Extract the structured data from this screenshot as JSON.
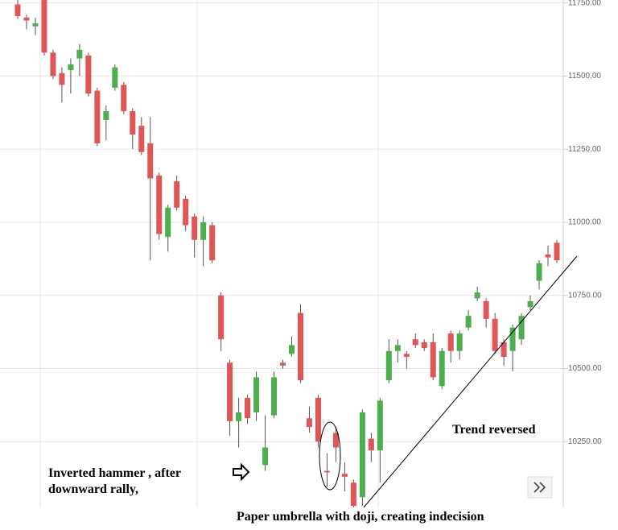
{
  "chart_data": {
    "type": "candlestick",
    "categories": [
      null,
      null,
      null,
      null,
      null,
      null,
      null,
      null,
      null,
      null,
      null,
      null,
      null,
      null,
      null,
      null,
      null,
      null,
      null,
      null,
      null,
      null,
      null,
      null,
      null,
      null,
      null,
      null,
      null,
      null,
      null,
      null,
      null,
      null,
      null,
      null,
      null,
      null,
      null,
      null,
      null,
      null,
      null,
      null,
      null,
      null,
      null,
      null,
      null,
      null,
      null,
      null,
      null,
      null,
      null,
      null,
      null,
      null,
      null,
      null,
      null,
      null
    ],
    "open": [
      11745,
      11700,
      11670,
      11760,
      11580,
      11510,
      11520,
      11560,
      11570,
      11450,
      11350,
      11460,
      11470,
      11380,
      11330,
      11270,
      11160,
      10950,
      11140,
      11080,
      11020,
      10940,
      10990,
      10750,
      10520,
      10320,
      10400,
      10350,
      10170,
      10340,
      10520,
      10550,
      10690,
      10330,
      10400,
      10150,
      10280,
      10140,
      10110,
      10060,
      10260,
      10220,
      10460,
      10560,
      10550,
      10600,
      10590,
      10590,
      10440,
      10620,
      10560,
      10640,
      10740,
      10730,
      10670,
      10590,
      10560,
      10600,
      10710,
      10800,
      10890,
      10930
    ],
    "high": [
      11760,
      11710,
      11700,
      11760,
      11590,
      11530,
      11560,
      11610,
      11580,
      11460,
      11400,
      11540,
      11480,
      11390,
      11360,
      11360,
      11170,
      11060,
      11160,
      11090,
      11030,
      11020,
      11000,
      10760,
      10530,
      10400,
      10410,
      10490,
      10340,
      10490,
      10530,
      10610,
      10720,
      10370,
      10410,
      10210,
      10300,
      10180,
      10120,
      10360,
      10280,
      10400,
      10600,
      10600,
      10560,
      10620,
      10600,
      10620,
      10570,
      10630,
      10630,
      10700,
      10780,
      10740,
      10690,
      10600,
      10650,
      10690,
      10750,
      10870,
      10920,
      10940
    ],
    "low": [
      11695,
      11660,
      11640,
      11570,
      11490,
      11410,
      11440,
      11500,
      11430,
      11260,
      11280,
      11450,
      11370,
      11250,
      11230,
      10870,
      10940,
      10900,
      11040,
      10970,
      10880,
      10850,
      10860,
      10560,
      10270,
      10230,
      10310,
      10320,
      10150,
      10330,
      10500,
      10540,
      10450,
      10280,
      10230,
      10095,
      10180,
      10080,
      10025,
      10030,
      10180,
      10110,
      10450,
      10520,
      10500,
      10570,
      10560,
      10460,
      10430,
      10520,
      10530,
      10630,
      10730,
      10640,
      10550,
      10510,
      10490,
      10580,
      10700,
      10770,
      10850,
      10860
    ],
    "close": [
      11705,
      11690,
      11680,
      11580,
      11500,
      11470,
      11540,
      11590,
      11440,
      11270,
      11380,
      11530,
      11380,
      11300,
      11240,
      11150,
      10960,
      11050,
      11050,
      10990,
      10940,
      11000,
      10870,
      10600,
      10320,
      10350,
      10330,
      10470,
      10230,
      10470,
      10510,
      10580,
      10460,
      10300,
      10250,
      10145,
      10230,
      10130,
      10030,
      10350,
      10220,
      10390,
      10560,
      10580,
      10540,
      10580,
      10570,
      10470,
      10560,
      10560,
      10620,
      10680,
      10760,
      10670,
      10560,
      10540,
      10640,
      10680,
      10730,
      10860,
      10880,
      10870
    ],
    "up_color": "#4cae4c",
    "down_color": "#e05555",
    "ylim": [
      10025,
      11760
    ],
    "yticks": [
      {
        "value": 10250,
        "label": "10250.00"
      },
      {
        "value": 10500,
        "label": "10500.00"
      },
      {
        "value": 10750,
        "label": "10750.00"
      },
      {
        "value": 11000,
        "label": "11000.00"
      },
      {
        "value": 11250,
        "label": "11250.00"
      },
      {
        "value": 11500,
        "label": "11500.00"
      },
      {
        "value": 11750,
        "label": "11750.00"
      }
    ],
    "grid": true,
    "annotations": [
      "Inverted hammer , after",
      "downward rally,",
      "Trend reversed",
      "Paper umbrella with doji, creating indecision"
    ]
  }
}
